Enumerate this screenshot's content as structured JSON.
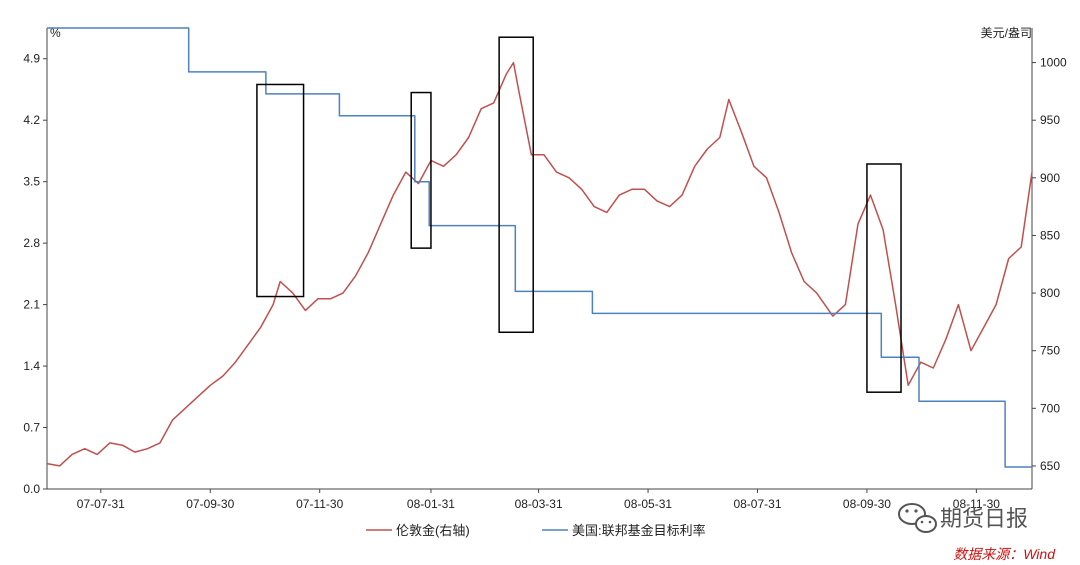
{
  "chart_data": {
    "type": "line",
    "left_axis": {
      "unit_label": "%",
      "ylim": [
        0,
        5.25
      ],
      "ticks": [
        "0.0",
        "0.7",
        "1.4",
        "2.1",
        "2.8",
        "3.5",
        "4.2",
        "4.9"
      ],
      "tick_values": [
        0,
        0.7,
        1.4,
        2.1,
        2.8,
        3.5,
        4.2,
        4.9
      ]
    },
    "right_axis": {
      "unit_label": "美元/盎司",
      "ylim": [
        630,
        1030
      ],
      "ticks": [
        "650",
        "700",
        "750",
        "800",
        "850",
        "900",
        "950",
        "1000"
      ],
      "tick_values": [
        650,
        700,
        750,
        800,
        850,
        900,
        950,
        1000
      ]
    },
    "x_axis": {
      "range": [
        "2007-07-01",
        "2008-12-31"
      ],
      "ticks": [
        "07-07-31",
        "07-09-30",
        "07-11-30",
        "08-01-31",
        "08-03-31",
        "08-05-31",
        "08-07-31",
        "08-09-30",
        "08-11-30"
      ],
      "tick_dates": [
        "2007-07-31",
        "2007-09-30",
        "2007-11-30",
        "2008-01-31",
        "2008-03-31",
        "2008-05-31",
        "2008-07-31",
        "2008-09-30",
        "2008-11-30"
      ]
    },
    "series": [
      {
        "name": "伦敦金(右轴)",
        "axis": "right",
        "color": "#c0504d",
        "x": [
          "2007-07-01",
          "2007-07-08",
          "2007-07-15",
          "2007-07-22",
          "2007-07-29",
          "2007-08-05",
          "2007-08-12",
          "2007-08-19",
          "2007-08-26",
          "2007-09-02",
          "2007-09-09",
          "2007-09-16",
          "2007-09-23",
          "2007-09-30",
          "2007-10-07",
          "2007-10-14",
          "2007-10-21",
          "2007-10-28",
          "2007-11-04",
          "2007-11-08",
          "2007-11-15",
          "2007-11-22",
          "2007-11-29",
          "2007-12-06",
          "2007-12-13",
          "2007-12-20",
          "2007-12-27",
          "2008-01-03",
          "2008-01-10",
          "2008-01-17",
          "2008-01-24",
          "2008-01-31",
          "2008-02-07",
          "2008-02-14",
          "2008-02-21",
          "2008-02-28",
          "2008-03-06",
          "2008-03-13",
          "2008-03-17",
          "2008-03-20",
          "2008-03-27",
          "2008-04-03",
          "2008-04-10",
          "2008-04-17",
          "2008-04-24",
          "2008-05-01",
          "2008-05-08",
          "2008-05-15",
          "2008-05-22",
          "2008-05-29",
          "2008-06-05",
          "2008-06-12",
          "2008-06-19",
          "2008-06-26",
          "2008-07-03",
          "2008-07-10",
          "2008-07-15",
          "2008-07-22",
          "2008-07-29",
          "2008-08-05",
          "2008-08-12",
          "2008-08-19",
          "2008-08-26",
          "2008-09-02",
          "2008-09-11",
          "2008-09-18",
          "2008-09-25",
          "2008-10-02",
          "2008-10-09",
          "2008-10-16",
          "2008-10-23",
          "2008-10-30",
          "2008-11-06",
          "2008-11-13",
          "2008-11-20",
          "2008-11-27",
          "2008-12-04",
          "2008-12-11",
          "2008-12-18",
          "2008-12-25",
          "2008-12-31"
        ],
        "values": [
          652,
          650,
          660,
          665,
          660,
          670,
          668,
          662,
          665,
          670,
          690,
          700,
          710,
          720,
          728,
          740,
          755,
          770,
          790,
          810,
          800,
          785,
          795,
          795,
          800,
          815,
          835,
          860,
          885,
          905,
          895,
          915,
          910,
          920,
          935,
          960,
          965,
          990,
          1000,
          975,
          920,
          920,
          905,
          900,
          890,
          875,
          870,
          885,
          890,
          890,
          880,
          875,
          885,
          910,
          925,
          935,
          968,
          940,
          910,
          900,
          870,
          835,
          810,
          800,
          780,
          790,
          860,
          885,
          855,
          790,
          720,
          740,
          735,
          760,
          790,
          750,
          770,
          790,
          830,
          840,
          905
        ]
      },
      {
        "name": "美国:联邦基金目标利率",
        "axis": "left",
        "color": "#4f81bd",
        "x": [
          "2007-07-01",
          "2007-09-18",
          "2007-09-18",
          "2007-10-31",
          "2007-10-31",
          "2007-12-11",
          "2007-12-11",
          "2008-01-22",
          "2008-01-22",
          "2008-01-30",
          "2008-01-30",
          "2008-03-18",
          "2008-03-18",
          "2008-04-30",
          "2008-04-30",
          "2008-10-08",
          "2008-10-08",
          "2008-10-29",
          "2008-10-29",
          "2008-12-16",
          "2008-12-16",
          "2008-12-31"
        ],
        "values": [
          5.25,
          5.25,
          4.75,
          4.75,
          4.5,
          4.5,
          4.25,
          4.25,
          3.5,
          3.5,
          3.0,
          3.0,
          2.25,
          2.25,
          2.0,
          2.0,
          1.5,
          1.5,
          1.0,
          1.0,
          0.25,
          0.25
        ]
      }
    ],
    "annotation_boxes": [
      {
        "from": "2007-10-26",
        "to": "2007-11-21",
        "right_axis_range": [
          797,
          981
        ]
      },
      {
        "from": "2008-01-20",
        "to": "2008-01-31",
        "right_axis_range": [
          839,
          974
        ]
      },
      {
        "from": "2008-03-09",
        "to": "2008-03-28",
        "right_axis_range": [
          766,
          1022
        ]
      },
      {
        "from": "2008-09-30",
        "to": "2008-10-19",
        "right_axis_range": [
          714,
          912
        ]
      }
    ],
    "legend": {
      "placement": "bottom-center"
    },
    "grid": false
  },
  "watermark": {
    "text": "期货日报"
  },
  "source_note": "数据来源：Wind"
}
